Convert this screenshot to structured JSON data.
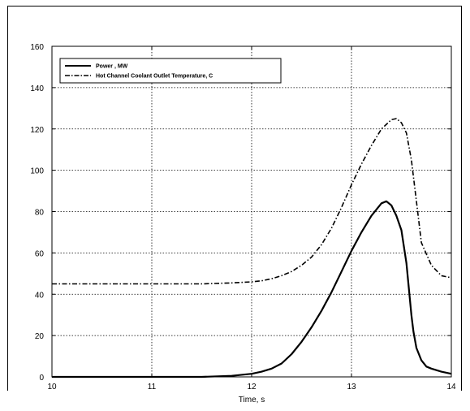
{
  "chart_data": {
    "type": "line",
    "title": "",
    "xlabel": "Time, s",
    "ylabel": "",
    "xlim": [
      10,
      14
    ],
    "ylim": [
      0,
      160
    ],
    "xticks": [
      10,
      11,
      12,
      13,
      14
    ],
    "yticks": [
      0,
      20,
      40,
      60,
      80,
      100,
      120,
      140,
      160
    ],
    "xtick_labels": [
      "10",
      "11",
      "12",
      "13",
      "14"
    ],
    "ytick_labels": [
      "0",
      "20",
      "40",
      "60",
      "80",
      "100",
      "120",
      "140",
      "160"
    ],
    "grid": true,
    "legend_position": "top-left",
    "series": [
      {
        "name": "Power , MW",
        "style": "solid",
        "color": "#000000",
        "x": [
          10.0,
          11.0,
          11.5,
          11.8,
          12.0,
          12.1,
          12.2,
          12.3,
          12.4,
          12.5,
          12.6,
          12.7,
          12.8,
          12.9,
          13.0,
          13.1,
          13.2,
          13.3,
          13.35,
          13.4,
          13.45,
          13.5,
          13.55,
          13.6,
          13.62,
          13.65,
          13.7,
          13.75,
          13.8,
          13.9,
          14.0
        ],
        "y": [
          0,
          0,
          0,
          0.5,
          1.5,
          2.5,
          4,
          6.5,
          11,
          17,
          24,
          32,
          41,
          51,
          61,
          70,
          78,
          84,
          85,
          83,
          78,
          71,
          55,
          30,
          22,
          14,
          8,
          5,
          4,
          2.5,
          1.5
        ]
      },
      {
        "name": "Hot Channel Coolant Outlet Temperature, C",
        "style": "dashdot",
        "color": "#000000",
        "x": [
          10.0,
          11.0,
          11.5,
          11.8,
          12.0,
          12.1,
          12.2,
          12.3,
          12.4,
          12.5,
          12.6,
          12.7,
          12.8,
          12.9,
          13.0,
          13.1,
          13.2,
          13.3,
          13.4,
          13.45,
          13.5,
          13.55,
          13.6,
          13.65,
          13.7,
          13.8,
          13.9,
          14.0
        ],
        "y": [
          45,
          45,
          45,
          45.5,
          46,
          46.5,
          47.5,
          49,
          51,
          54,
          58,
          64,
          72,
          82,
          93,
          103,
          112,
          120,
          124.5,
          125,
          123,
          118,
          105,
          85,
          65,
          54,
          49,
          48
        ]
      }
    ]
  }
}
